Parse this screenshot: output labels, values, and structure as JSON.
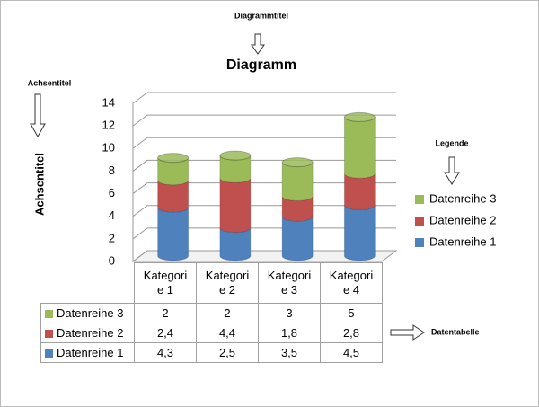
{
  "annotations": {
    "chart_title_label": "Diagrammtitel",
    "axis_title_label": "Achsentitel",
    "legend_label": "Legende",
    "data_table_label": "Datentabelle"
  },
  "chart_data": {
    "type": "bar",
    "stacked": true,
    "title": "Diagramm",
    "y_label": "Achsentitel",
    "categories": [
      "Kategorie 1",
      "Kategorie 2",
      "Kategorie 3",
      "Kategorie 4"
    ],
    "series": [
      {
        "name": "Datenreihe 1",
        "color": "#4f81bd",
        "values": [
          4.3,
          2.5,
          3.5,
          4.5
        ],
        "value_labels": [
          "4,3",
          "2,5",
          "3,5",
          "4,5"
        ]
      },
      {
        "name": "Datenreihe 2",
        "color": "#c0504d",
        "values": [
          2.4,
          4.4,
          1.8,
          2.8
        ],
        "value_labels": [
          "2,4",
          "4,4",
          "1,8",
          "2,8"
        ]
      },
      {
        "name": "Datenreihe 3",
        "color": "#9bbb59",
        "values": [
          2,
          2,
          3,
          5
        ]
      }
    ],
    "ylim": [
      0,
      14
    ],
    "yticks": [
      0,
      2,
      4,
      6,
      8,
      10,
      12,
      14
    ],
    "grid": true,
    "legend": "right",
    "data_table": true
  }
}
